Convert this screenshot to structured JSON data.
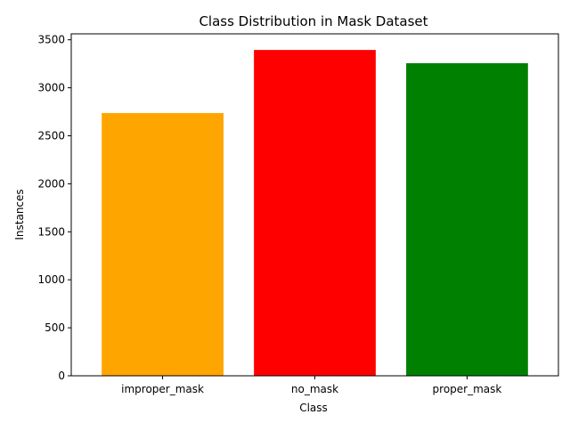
{
  "chart_data": {
    "type": "bar",
    "title": "Class Distribution in Mask Dataset",
    "xlabel": "Class",
    "ylabel": "Instances",
    "categories": [
      "improper_mask",
      "no_mask",
      "proper_mask"
    ],
    "values": [
      2737,
      3394,
      3256
    ],
    "colors": [
      "#ffa500",
      "#ff0000",
      "#008000"
    ],
    "ylim": [
      0,
      3562
    ],
    "yticks": [
      0,
      500,
      1000,
      1500,
      2000,
      2500,
      3000,
      3500
    ],
    "grid": false,
    "legend": "none"
  }
}
